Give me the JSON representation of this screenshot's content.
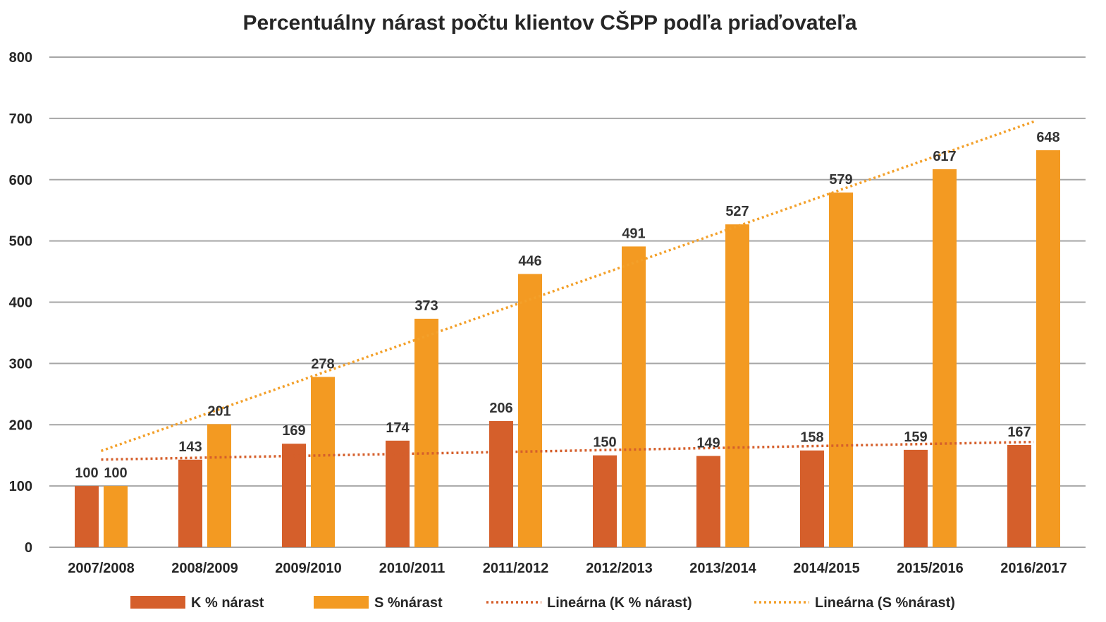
{
  "chart_data": {
    "type": "bar",
    "title": "Percentuálny nárast počtu klientov CŠPP podľa priaďovateľa",
    "categories": [
      "2007/2008",
      "2008/2009",
      "2009/2010",
      "2010/2011",
      "2011/2012",
      "2012/2013",
      "2013/2014",
      "2014/2015",
      "2015/2016",
      "2016/2017"
    ],
    "series": [
      {
        "name": "K % nárast",
        "color": "#D55F2B",
        "values": [
          100,
          143,
          169,
          174,
          206,
          150,
          149,
          158,
          159,
          167
        ]
      },
      {
        "name": "S %nárast",
        "color": "#F39A22",
        "values": [
          100,
          201,
          278,
          373,
          446,
          491,
          527,
          579,
          617,
          648
        ]
      }
    ],
    "trendlines": [
      {
        "name": "Lineárna (K % nárast)",
        "color": "#D55F2B",
        "style": "dotted",
        "type": "linear",
        "of_series": 0
      },
      {
        "name": "Lineárna (S %nárast)",
        "color": "#F3A02A",
        "style": "dotted",
        "type": "linear",
        "of_series": 1
      }
    ],
    "y_ticks": [
      "0",
      "100",
      "200",
      "300",
      "400",
      "500",
      "600",
      "700",
      "800"
    ],
    "ylim": [
      0,
      800
    ],
    "grid": true,
    "legend": "bottom",
    "grid_color": "#A6A6A6"
  }
}
